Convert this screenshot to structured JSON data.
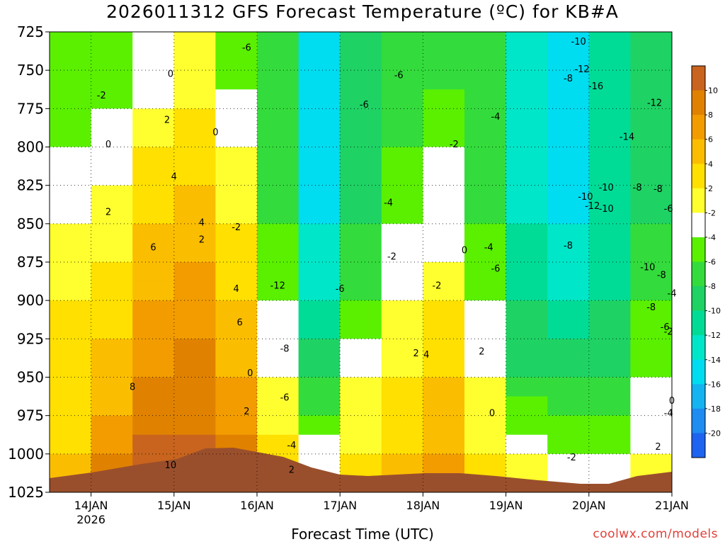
{
  "title": "2026011312 GFS Forecast Temperature (ºC) for KB#A",
  "credit": "coolwx.com/models",
  "chart_data": {
    "type": "heatmap",
    "title": "2026011312 GFS Forecast Temperature (ºC) for KB#A",
    "xlabel": "Forecast Time (UTC)",
    "ylabel": "",
    "x_ticks": [
      "14JAN",
      "15JAN",
      "16JAN",
      "17JAN",
      "18JAN",
      "19JAN",
      "20JAN",
      "21JAN"
    ],
    "x_sub_label": "2026",
    "x_range": [
      "13JAN 12Z",
      "21JAN 00Z"
    ],
    "y_ticks": [
      725,
      750,
      775,
      800,
      825,
      850,
      875,
      900,
      925,
      950,
      975,
      1000,
      1025
    ],
    "y_range": [
      725,
      1025
    ],
    "y_reversed": true,
    "grid": true,
    "colorbar": {
      "levels": [
        10,
        8,
        6,
        4,
        2,
        -2,
        -4,
        -6,
        -8,
        -10,
        -12,
        -14,
        -16,
        -18,
        -20
      ],
      "labels": [
        "10",
        "8",
        "6",
        "4",
        "2",
        "-2",
        "-4",
        "-6",
        "-8",
        "-10",
        "-12",
        "-14",
        "-16",
        "-18",
        "-20"
      ],
      "colors": [
        "#c8641e",
        "#e08200",
        "#f29c00",
        "#fbbd00",
        "#ffe000",
        "#ffff30",
        "#ffffff",
        "#5af000",
        "#33dc3c",
        "#1ed264",
        "#00dc96",
        "#00e6c8",
        "#00dcf0",
        "#14b4f0",
        "#1e8cf0",
        "#1e64f0"
      ]
    },
    "temperature_columns": [
      {
        "t": "13JAN 12Z",
        "profile": [
          [
            725,
            -4
          ],
          [
            800,
            -2
          ],
          [
            850,
            0
          ],
          [
            900,
            2
          ],
          [
            950,
            2
          ],
          [
            1000,
            4
          ]
        ]
      },
      {
        "t": "14JAN 00Z",
        "profile": [
          [
            725,
            -4
          ],
          [
            775,
            -2
          ],
          [
            825,
            0
          ],
          [
            875,
            2
          ],
          [
            925,
            4
          ],
          [
            975,
            6
          ],
          [
            1000,
            8
          ]
        ]
      },
      {
        "t": "14JAN 12Z",
        "profile": [
          [
            725,
            -2
          ],
          [
            775,
            0
          ],
          [
            800,
            2
          ],
          [
            850,
            4
          ],
          [
            900,
            6
          ],
          [
            950,
            8
          ],
          [
            985,
            10
          ]
        ]
      },
      {
        "t": "15JAN 00Z",
        "profile": [
          [
            725,
            0
          ],
          [
            775,
            2
          ],
          [
            825,
            4
          ],
          [
            875,
            6
          ],
          [
            925,
            8
          ],
          [
            990,
            10
          ]
        ]
      },
      {
        "t": "15JAN 12Z",
        "profile": [
          [
            725,
            -4
          ],
          [
            800,
            0
          ],
          [
            850,
            2
          ],
          [
            900,
            4
          ],
          [
            950,
            6
          ],
          [
            985,
            8
          ]
        ]
      },
      {
        "t": "16JAN 00Z",
        "profile": [
          [
            725,
            -6
          ],
          [
            800,
            -6
          ],
          [
            850,
            -4
          ],
          [
            900,
            -2
          ],
          [
            950,
            0
          ],
          [
            990,
            2
          ]
        ]
      },
      {
        "t": "16JAN 12Z",
        "profile": [
          [
            725,
            -14
          ],
          [
            800,
            -14
          ],
          [
            850,
            -12
          ],
          [
            900,
            -10
          ],
          [
            950,
            -6
          ],
          [
            990,
            -2
          ]
        ]
      },
      {
        "t": "17JAN 00Z",
        "profile": [
          [
            725,
            -8
          ],
          [
            800,
            -8
          ],
          [
            850,
            -6
          ],
          [
            900,
            -4
          ],
          [
            950,
            0
          ],
          [
            1000,
            2
          ]
        ]
      },
      {
        "t": "17JAN 12Z",
        "profile": [
          [
            725,
            -6
          ],
          [
            800,
            -4
          ],
          [
            850,
            -2
          ],
          [
            900,
            0
          ],
          [
            950,
            2
          ],
          [
            1000,
            4
          ]
        ]
      },
      {
        "t": "18JAN 00Z",
        "profile": [
          [
            725,
            -6
          ],
          [
            800,
            -2
          ],
          [
            850,
            -2
          ],
          [
            900,
            2
          ],
          [
            950,
            4
          ],
          [
            1000,
            6
          ]
        ]
      },
      {
        "t": "18JAN 12Z",
        "profile": [
          [
            725,
            -6
          ],
          [
            800,
            -6
          ],
          [
            850,
            -4
          ],
          [
            900,
            -2
          ],
          [
            950,
            0
          ],
          [
            1000,
            2
          ]
        ]
      },
      {
        "t": "19JAN 00Z",
        "profile": [
          [
            725,
            -10
          ],
          [
            800,
            -12
          ],
          [
            850,
            -10
          ],
          [
            900,
            -8
          ],
          [
            950,
            -6
          ],
          [
            1000,
            0
          ]
        ]
      },
      {
        "t": "19JAN 12Z",
        "profile": [
          [
            725,
            -12
          ],
          [
            800,
            -14
          ],
          [
            850,
            -12
          ],
          [
            900,
            -10
          ],
          [
            950,
            -6
          ],
          [
            1000,
            -2
          ]
        ]
      },
      {
        "t": "20JAN 00Z",
        "profile": [
          [
            725,
            -10
          ],
          [
            800,
            -10
          ],
          [
            850,
            -10
          ],
          [
            900,
            -8
          ],
          [
            950,
            -6
          ],
          [
            1000,
            -2
          ]
        ]
      },
      {
        "t": "20JAN 12Z",
        "profile": [
          [
            725,
            -8
          ],
          [
            800,
            -8
          ],
          [
            850,
            -6
          ],
          [
            900,
            -4
          ],
          [
            950,
            -2
          ],
          [
            1000,
            0
          ]
        ]
      },
      {
        "t": "21JAN 00Z",
        "profile": [
          [
            725,
            -6
          ],
          [
            800,
            -6
          ],
          [
            850,
            -6
          ],
          [
            900,
            -4
          ],
          [
            950,
            -2
          ],
          [
            1000,
            2
          ]
        ]
      }
    ],
    "contour_labels": [
      {
        "text": "-6",
        "t": "15JAN 21Z",
        "p": 735
      },
      {
        "text": "-10",
        "t": "19JAN 21Z",
        "p": 731
      },
      {
        "text": "0",
        "t": "14JAN 23Z",
        "p": 752
      },
      {
        "text": "-2",
        "t": "14JAN 03Z",
        "p": 766
      },
      {
        "text": "-6",
        "t": "17JAN 17Z",
        "p": 753
      },
      {
        "text": "-12",
        "t": "19JAN 22Z",
        "p": 749
      },
      {
        "text": "-8",
        "t": "19JAN 18Z",
        "p": 755
      },
      {
        "text": "-16",
        "t": "20JAN 02Z",
        "p": 760
      },
      {
        "text": "-6",
        "t": "17JAN 07Z",
        "p": 772
      },
      {
        "text": "-12",
        "t": "20JAN 19Z",
        "p": 771
      },
      {
        "text": "2",
        "t": "14JAN 22Z",
        "p": 782
      },
      {
        "text": "-4",
        "t": "18JAN 21Z",
        "p": 780
      },
      {
        "text": "0",
        "t": "15JAN 12Z",
        "p": 790
      },
      {
        "text": "-14",
        "t": "20JAN 11Z",
        "p": 793
      },
      {
        "text": "0",
        "t": "14JAN 05Z",
        "p": 798
      },
      {
        "text": "-2",
        "t": "18JAN 09Z",
        "p": 798
      },
      {
        "text": "4",
        "t": "15JAN 00Z",
        "p": 819
      },
      {
        "text": "-10",
        "t": "20JAN 05Z",
        "p": 826
      },
      {
        "text": "-8",
        "t": "20JAN 14Z",
        "p": 826
      },
      {
        "text": "-8",
        "t": "20JAN 20Z",
        "p": 827
      },
      {
        "text": "-10",
        "t": "19JAN 23Z",
        "p": 832
      },
      {
        "text": "-4",
        "t": "17JAN 14Z",
        "p": 836
      },
      {
        "text": "-12",
        "t": "20JAN 01Z",
        "p": 838
      },
      {
        "text": "-10",
        "t": "20JAN 05Z",
        "p": 840
      },
      {
        "text": "-6",
        "t": "20JAN 23Z",
        "p": 840
      },
      {
        "text": "2",
        "t": "14JAN 05Z",
        "p": 842
      },
      {
        "text": "4",
        "t": "15JAN 08Z",
        "p": 849
      },
      {
        "text": "-2",
        "t": "15JAN 18Z",
        "p": 852
      },
      {
        "text": "2",
        "t": "15JAN 08Z",
        "p": 860
      },
      {
        "text": "-4",
        "t": "18JAN 19Z",
        "p": 865
      },
      {
        "text": "-8",
        "t": "19JAN 18Z",
        "p": 864
      },
      {
        "text": "6",
        "t": "14JAN 18Z",
        "p": 865
      },
      {
        "text": "0",
        "t": "18JAN 12Z",
        "p": 867
      },
      {
        "text": "-2",
        "t": "17JAN 15Z",
        "p": 871
      },
      {
        "text": "-6",
        "t": "18JAN 21Z",
        "p": 879
      },
      {
        "text": "-10",
        "t": "20JAN 17Z",
        "p": 878
      },
      {
        "text": "-8",
        "t": "20JAN 21Z",
        "p": 883
      },
      {
        "text": "4",
        "t": "15JAN 18Z",
        "p": 892
      },
      {
        "text": "-12",
        "t": "16JAN 06Z",
        "p": 890
      },
      {
        "text": "-6",
        "t": "17JAN 00Z",
        "p": 892
      },
      {
        "text": "-2",
        "t": "18JAN 04Z",
        "p": 890
      },
      {
        "text": "-4",
        "t": "21JAN 00Z",
        "p": 895
      },
      {
        "text": "-8",
        "t": "20JAN 18Z",
        "p": 904
      },
      {
        "text": "6",
        "t": "15JAN 19Z",
        "p": 914
      },
      {
        "text": "-6",
        "t": "20JAN 22Z",
        "p": 917
      },
      {
        "text": "-2",
        "t": "20JAN 23Z",
        "p": 920
      },
      {
        "text": "-8",
        "t": "16JAN 08Z",
        "p": 931
      },
      {
        "text": "2",
        "t": "17JAN 22Z",
        "p": 934
      },
      {
        "text": "4",
        "t": "18JAN 01Z",
        "p": 935
      },
      {
        "text": "2",
        "t": "18JAN 17Z",
        "p": 933
      },
      {
        "text": "0",
        "t": "15JAN 22Z",
        "p": 947
      },
      {
        "text": "8",
        "t": "14JAN 12Z",
        "p": 956
      },
      {
        "text": "-6",
        "t": "16JAN 08Z",
        "p": 963
      },
      {
        "text": "0",
        "t": "21JAN 00Z",
        "p": 965
      },
      {
        "text": "2",
        "t": "15JAN 21Z",
        "p": 972
      },
      {
        "text": "0",
        "t": "18JAN 20Z",
        "p": 973
      },
      {
        "text": "-4",
        "t": "20JAN 23Z",
        "p": 973
      },
      {
        "text": "-4",
        "t": "16JAN 10Z",
        "p": 994
      },
      {
        "text": "2",
        "t": "20JAN 20Z",
        "p": 995
      },
      {
        "text": "-2",
        "t": "19JAN 19Z",
        "p": 1002
      },
      {
        "text": "10",
        "t": "14JAN 23Z",
        "p": 1007
      },
      {
        "text": "2",
        "t": "16JAN 10Z",
        "p": 1010
      }
    ]
  }
}
